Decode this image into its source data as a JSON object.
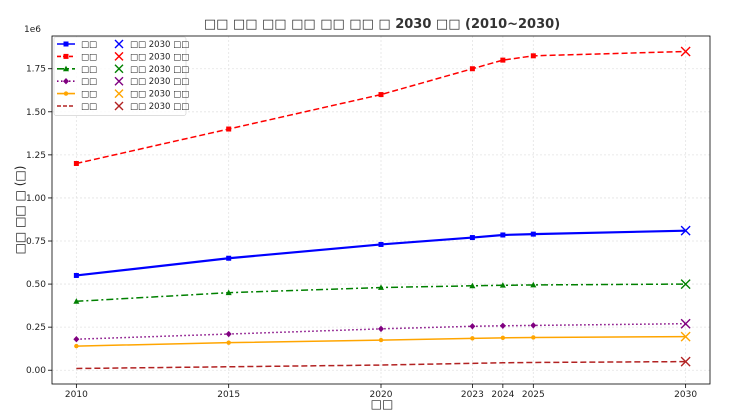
{
  "chart_data": {
    "type": "line",
    "title": "□□ □□ □□ □□ □□ □□ □ 2030 □□ (2010~2030)",
    "xlabel": "□□",
    "ylabel": "□□ □□ □ (□)",
    "y_scale_label": "1e6",
    "x_ticks": [
      2010,
      2015,
      2020,
      2023,
      2024,
      2025,
      2030
    ],
    "y_ticks": [
      0.0,
      0.25,
      0.5,
      0.75,
      1.0,
      1.25,
      1.5,
      1.75
    ],
    "y_tick_labels": [
      "0.00",
      "0.25",
      "0.50",
      "0.75",
      "1.00",
      "1.25",
      "1.50",
      "1.75"
    ],
    "xlim": [
      2009.2,
      2030.8
    ],
    "ylim": [
      -0.08,
      1.94
    ],
    "grid": true,
    "legend_position": "top-left",
    "x": [
      2010,
      2015,
      2020,
      2023,
      2024,
      2025
    ],
    "series": [
      {
        "name": "□□",
        "projection_label": "□□ 2030 □□",
        "color": "#0000ff",
        "line_style": "solid",
        "marker": "square",
        "values": [
          0.55,
          0.65,
          0.73,
          0.77,
          0.785,
          0.79
        ],
        "proj_2030": 0.81
      },
      {
        "name": "□□",
        "projection_label": "□□ 2030 □□",
        "color": "#ff0000",
        "line_style": "dashed",
        "marker": "square",
        "values": [
          1.2,
          1.4,
          1.6,
          1.75,
          1.8,
          1.825
        ],
        "proj_2030": 1.85
      },
      {
        "name": "□□",
        "projection_label": "□□ 2030 □□",
        "color": "#008000",
        "line_style": "dashdot",
        "marker": "triangle",
        "values": [
          0.4,
          0.45,
          0.48,
          0.49,
          0.493,
          0.495
        ],
        "proj_2030": 0.5
      },
      {
        "name": "□□",
        "projection_label": "□□ 2030 □□",
        "color": "#800080",
        "line_style": "dotted",
        "marker": "diamond",
        "values": [
          0.18,
          0.21,
          0.24,
          0.255,
          0.258,
          0.26
        ],
        "proj_2030": 0.27
      },
      {
        "name": "□□",
        "projection_label": "□□ 2030 □□",
        "color": "#ffa500",
        "line_style": "solid",
        "marker": "dot",
        "values": [
          0.14,
          0.16,
          0.175,
          0.185,
          0.188,
          0.19
        ],
        "proj_2030": 0.195
      },
      {
        "name": "□□",
        "projection_label": "□□ 2030 □□",
        "color": "#b22222",
        "line_style": "dashed",
        "marker": "none",
        "values": [
          0.01,
          0.02,
          0.03,
          0.04,
          0.043,
          0.045
        ],
        "proj_2030": 0.05
      }
    ]
  }
}
